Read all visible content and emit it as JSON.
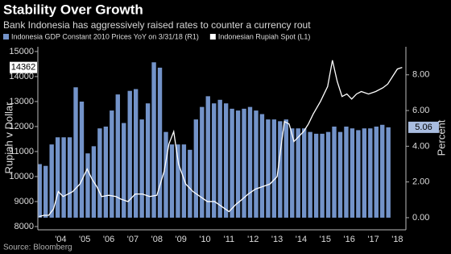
{
  "chart_data": {
    "type": "bar-line",
    "title": "Stability Over Growth",
    "subtitle": "Bank Indonesia has aggressively raised rates to counter a currency rout",
    "source": "Source: Bloomberg",
    "ylabel": "Rupiah v Dollar",
    "y2label": "Percent",
    "xlim": [
      2003.55,
      2018.855
    ],
    "xticks": [
      {
        "value": 2004.5,
        "label": "'04"
      },
      {
        "value": 2005.5,
        "label": "'05"
      },
      {
        "value": 2006.5,
        "label": "'06"
      },
      {
        "value": 2007.5,
        "label": "'07"
      },
      {
        "value": 2008.5,
        "label": "'08"
      },
      {
        "value": 2009.5,
        "label": "'09"
      },
      {
        "value": 2010.5,
        "label": "'10"
      },
      {
        "value": 2011.5,
        "label": "'11"
      },
      {
        "value": 2012.5,
        "label": "'12"
      },
      {
        "value": 2013.5,
        "label": "'13"
      },
      {
        "value": 2014.5,
        "label": "'14"
      },
      {
        "value": 2015.5,
        "label": "'15"
      },
      {
        "value": 2016.5,
        "label": "'16"
      },
      {
        "value": 2017.5,
        "label": "'17"
      },
      {
        "value": 2018.5,
        "label": "'18"
      }
    ],
    "ylim": [
      7870,
      15190
    ],
    "yticks": [
      8000,
      9000,
      10000,
      11000,
      12000,
      13000,
      14000,
      15000
    ],
    "y2lim": [
      -0.68,
      9.57
    ],
    "y2ticks": [
      {
        "value": 0,
        "label": "0.00"
      },
      {
        "value": 2,
        "label": "2.00"
      },
      {
        "value": 4,
        "label": "4.00"
      },
      {
        "value": 6,
        "label": "6.00"
      },
      {
        "value": 8,
        "label": "8.00"
      }
    ],
    "series": [
      {
        "name": "Indonesia GDP Constant 2010 Prices YoY  on 3/31/18  (R1)",
        "type": "bar",
        "axis": "y2",
        "color": "#7393c9",
        "x": [
          2003.625,
          2003.875,
          2004.125,
          2004.375,
          2004.625,
          2004.875,
          2005.125,
          2005.375,
          2005.625,
          2005.875,
          2006.125,
          2006.375,
          2006.625,
          2006.875,
          2007.125,
          2007.375,
          2007.625,
          2007.875,
          2008.125,
          2008.375,
          2008.625,
          2008.875,
          2009.125,
          2009.375,
          2009.625,
          2009.875,
          2010.125,
          2010.375,
          2010.625,
          2010.875,
          2011.125,
          2011.375,
          2011.625,
          2011.875,
          2012.125,
          2012.375,
          2012.625,
          2012.875,
          2013.125,
          2013.375,
          2013.625,
          2013.875,
          2014.125,
          2014.375,
          2014.625,
          2014.875,
          2015.125,
          2015.375,
          2015.625,
          2015.875,
          2016.125,
          2016.375,
          2016.625,
          2016.875,
          2017.125,
          2017.375,
          2017.625,
          2017.875,
          2018.125
        ],
        "values": [
          3.0,
          2.9,
          4.1,
          4.5,
          4.5,
          4.5,
          7.3,
          6.5,
          3.6,
          4.0,
          5.0,
          5.1,
          6.0,
          6.9,
          5.3,
          7.1,
          7.2,
          5.5,
          6.4,
          8.7,
          8.4,
          4.8,
          4.1,
          4.1,
          4.1,
          3.8,
          5.5,
          6.2,
          6.8,
          6.4,
          6.6,
          6.4,
          6.1,
          6.0,
          6.1,
          6.2,
          6.0,
          5.8,
          5.5,
          5.5,
          5.4,
          5.5,
          5.0,
          5.0,
          5.0,
          4.8,
          4.7,
          4.7,
          4.8,
          5.1,
          4.8,
          5.1,
          5.0,
          4.9,
          5.0,
          5.0,
          5.1,
          5.2,
          5.06
        ]
      },
      {
        "name": "Indonesian Rupiah Spot  (L1)",
        "type": "line",
        "color": "#ffffff",
        "x": [
          2003.6,
          2003.8,
          2004.0,
          2004.2,
          2004.4,
          2004.6,
          2004.8,
          2005.0,
          2005.3,
          2005.6,
          2005.8,
          2006.0,
          2006.2,
          2006.5,
          2006.8,
          2007.0,
          2007.3,
          2007.6,
          2007.9,
          2008.2,
          2008.5,
          2008.8,
          2009.0,
          2009.2,
          2009.4,
          2009.7,
          2010.0,
          2010.3,
          2010.6,
          2010.9,
          2011.2,
          2011.5,
          2011.8,
          2012.0,
          2012.3,
          2012.6,
          2012.9,
          2013.2,
          2013.5,
          2013.8,
          2014.0,
          2014.2,
          2014.4,
          2014.6,
          2014.8,
          2015.0,
          2015.3,
          2015.6,
          2015.8,
          2016.0,
          2016.2,
          2016.4,
          2016.6,
          2016.8,
          2017.0,
          2017.3,
          2017.6,
          2017.9,
          2018.1,
          2018.3,
          2018.5,
          2018.7
        ],
        "values": [
          8400,
          8450,
          8450,
          8700,
          9400,
          9200,
          9300,
          9400,
          9700,
          10300,
          9900,
          9600,
          9200,
          9250,
          9200,
          9100,
          9000,
          9300,
          9300,
          9200,
          9250,
          10200,
          11300,
          11800,
          10500,
          9700,
          9400,
          9200,
          9000,
          9000,
          8800,
          8600,
          8900,
          9050,
          9300,
          9500,
          9600,
          9700,
          10000,
          12200,
          12100,
          11400,
          11600,
          11800,
          12100,
          12500,
          13000,
          13600,
          14650,
          13800,
          13200,
          13300,
          13100,
          13300,
          13400,
          13300,
          13400,
          13550,
          13700,
          14000,
          14300,
          14362
        ]
      }
    ]
  }
}
